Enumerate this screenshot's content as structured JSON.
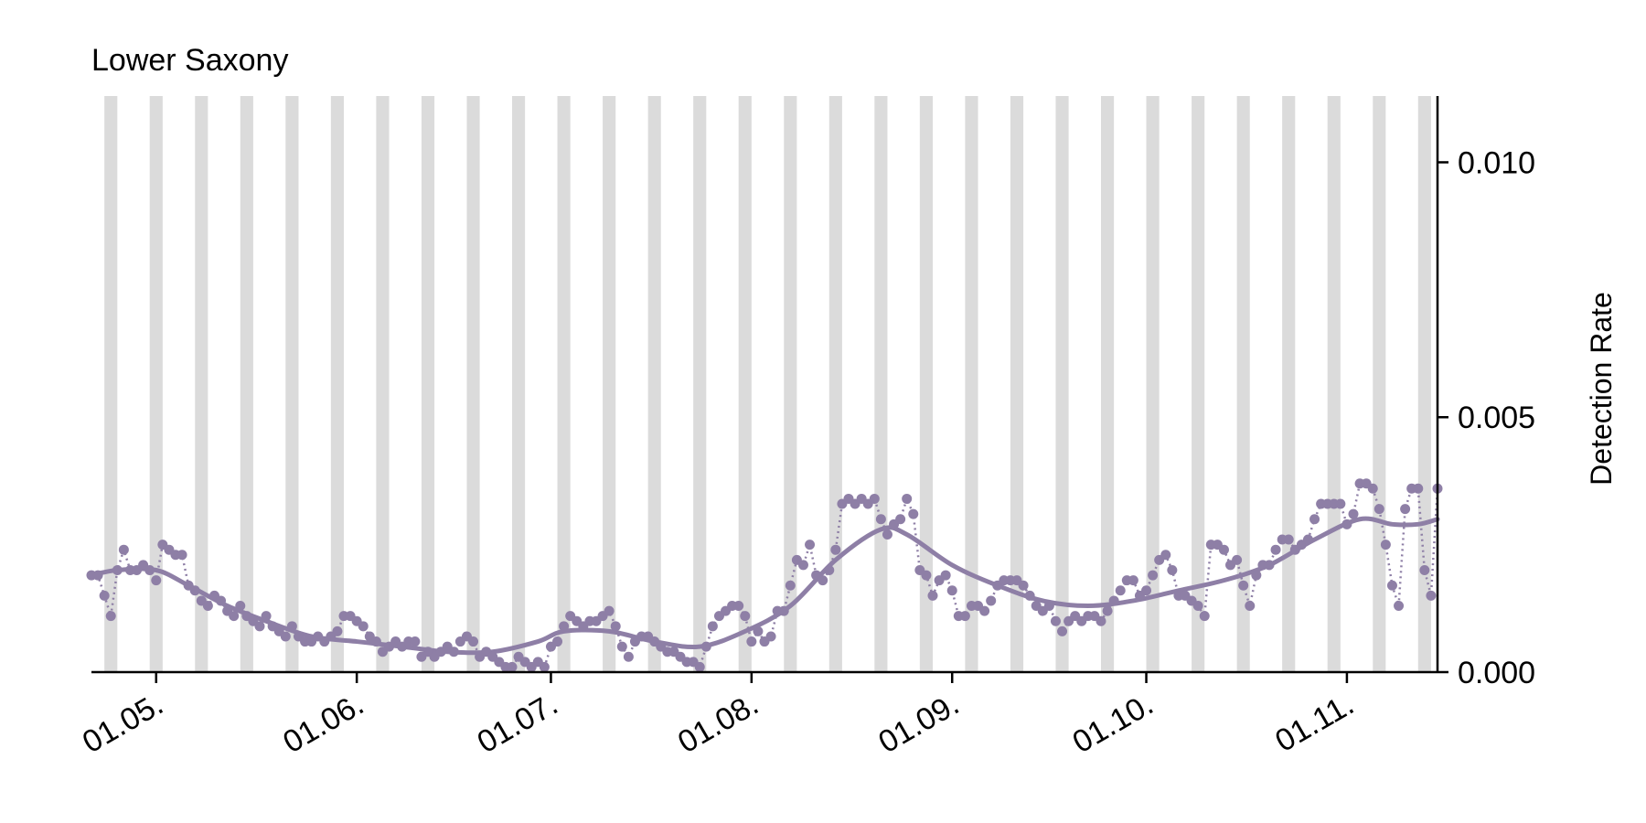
{
  "chart_data": {
    "type": "line",
    "title": "Lower Saxony",
    "ylabel": "Detection Rate",
    "xlabel": "",
    "ylim": [
      0,
      0.0113
    ],
    "xlim": [
      "2022-04-21",
      "2022-11-15"
    ],
    "y_ticks": [
      {
        "value": 0.0,
        "label": "0.000"
      },
      {
        "value": 0.005,
        "label": "0.005"
      },
      {
        "value": 0.01,
        "label": "0.010"
      }
    ],
    "x_ticks": [
      {
        "date": "2022-05-01",
        "label": "01.05."
      },
      {
        "date": "2022-06-01",
        "label": "01.06."
      },
      {
        "date": "2022-07-01",
        "label": "01.07."
      },
      {
        "date": "2022-08-01",
        "label": "01.08."
      },
      {
        "date": "2022-09-01",
        "label": "01.09."
      },
      {
        "date": "2022-10-01",
        "label": "01.10."
      },
      {
        "date": "2022-11-01",
        "label": "01.11."
      }
    ],
    "y_axis_position": "right",
    "grid": false,
    "weekend_bands": [
      "2022-04-23",
      "2022-04-30",
      "2022-05-07",
      "2022-05-14",
      "2022-05-21",
      "2022-05-28",
      "2022-06-04",
      "2022-06-11",
      "2022-06-18",
      "2022-06-25",
      "2022-07-02",
      "2022-07-09",
      "2022-07-16",
      "2022-07-23",
      "2022-07-30",
      "2022-08-06",
      "2022-08-13",
      "2022-08-20",
      "2022-08-27",
      "2022-09-03",
      "2022-09-10",
      "2022-09-17",
      "2022-09-24",
      "2022-10-01",
      "2022-10-08",
      "2022-10-15",
      "2022-10-22",
      "2022-10-29",
      "2022-11-05",
      "2022-11-12"
    ],
    "series": [
      {
        "color": "#8e7fa6",
        "style": "points-dotted",
        "points": [
          [
            "2022-04-21",
            0.0019
          ],
          [
            "2022-04-22",
            0.0019
          ],
          [
            "2022-04-23",
            0.0015
          ],
          [
            "2022-04-24",
            0.0011
          ],
          [
            "2022-04-25",
            0.002
          ],
          [
            "2022-04-26",
            0.0024
          ],
          [
            "2022-04-27",
            0.002
          ],
          [
            "2022-04-28",
            0.002
          ],
          [
            "2022-04-29",
            0.0021
          ],
          [
            "2022-04-30",
            0.002
          ],
          [
            "2022-05-01",
            0.0018
          ],
          [
            "2022-05-02",
            0.0025
          ],
          [
            "2022-05-03",
            0.0024
          ],
          [
            "2022-05-04",
            0.0023
          ],
          [
            "2022-05-05",
            0.0023
          ],
          [
            "2022-05-06",
            0.0017
          ],
          [
            "2022-05-07",
            0.0016
          ],
          [
            "2022-05-08",
            0.0014
          ],
          [
            "2022-05-09",
            0.0013
          ],
          [
            "2022-05-10",
            0.0015
          ],
          [
            "2022-05-11",
            0.0014
          ],
          [
            "2022-05-12",
            0.0012
          ],
          [
            "2022-05-13",
            0.0011
          ],
          [
            "2022-05-14",
            0.0013
          ],
          [
            "2022-05-15",
            0.0011
          ],
          [
            "2022-05-16",
            0.001
          ],
          [
            "2022-05-17",
            0.0009
          ],
          [
            "2022-05-18",
            0.0011
          ],
          [
            "2022-05-19",
            0.0009
          ],
          [
            "2022-05-20",
            0.0008
          ],
          [
            "2022-05-21",
            0.0007
          ],
          [
            "2022-05-22",
            0.0009
          ],
          [
            "2022-05-23",
            0.0007
          ],
          [
            "2022-05-24",
            0.0006
          ],
          [
            "2022-05-25",
            0.0006
          ],
          [
            "2022-05-26",
            0.0007
          ],
          [
            "2022-05-27",
            0.0006
          ],
          [
            "2022-05-28",
            0.0007
          ],
          [
            "2022-05-29",
            0.0008
          ],
          [
            "2022-05-30",
            0.0011
          ],
          [
            "2022-05-31",
            0.0011
          ],
          [
            "2022-06-01",
            0.001
          ],
          [
            "2022-06-02",
            0.0009
          ],
          [
            "2022-06-03",
            0.0007
          ],
          [
            "2022-06-04",
            0.0006
          ],
          [
            "2022-06-05",
            0.0004
          ],
          [
            "2022-06-06",
            0.0005
          ],
          [
            "2022-06-07",
            0.0006
          ],
          [
            "2022-06-08",
            0.0005
          ],
          [
            "2022-06-09",
            0.0006
          ],
          [
            "2022-06-10",
            0.0006
          ],
          [
            "2022-06-11",
            0.0003
          ],
          [
            "2022-06-12",
            0.0004
          ],
          [
            "2022-06-13",
            0.0003
          ],
          [
            "2022-06-14",
            0.0004
          ],
          [
            "2022-06-15",
            0.0005
          ],
          [
            "2022-06-16",
            0.0004
          ],
          [
            "2022-06-17",
            0.0006
          ],
          [
            "2022-06-18",
            0.0007
          ],
          [
            "2022-06-19",
            0.0006
          ],
          [
            "2022-06-20",
            0.0003
          ],
          [
            "2022-06-21",
            0.0004
          ],
          [
            "2022-06-22",
            0.0003
          ],
          [
            "2022-06-23",
            0.0002
          ],
          [
            "2022-06-24",
            0.0001
          ],
          [
            "2022-06-25",
            0.0001
          ],
          [
            "2022-06-26",
            0.0003
          ],
          [
            "2022-06-27",
            0.0002
          ],
          [
            "2022-06-28",
            0.0001
          ],
          [
            "2022-06-29",
            0.0002
          ],
          [
            "2022-06-30",
            0.0001
          ],
          [
            "2022-07-01",
            0.0005
          ],
          [
            "2022-07-02",
            0.0006
          ],
          [
            "2022-07-03",
            0.0009
          ],
          [
            "2022-07-04",
            0.0011
          ],
          [
            "2022-07-05",
            0.001
          ],
          [
            "2022-07-06",
            0.0009
          ],
          [
            "2022-07-07",
            0.001
          ],
          [
            "2022-07-08",
            0.001
          ],
          [
            "2022-07-09",
            0.0011
          ],
          [
            "2022-07-10",
            0.0012
          ],
          [
            "2022-07-11",
            0.0009
          ],
          [
            "2022-07-12",
            0.0005
          ],
          [
            "2022-07-13",
            0.0003
          ],
          [
            "2022-07-14",
            0.0006
          ],
          [
            "2022-07-15",
            0.0007
          ],
          [
            "2022-07-16",
            0.0007
          ],
          [
            "2022-07-17",
            0.0006
          ],
          [
            "2022-07-18",
            0.0005
          ],
          [
            "2022-07-19",
            0.0004
          ],
          [
            "2022-07-20",
            0.0004
          ],
          [
            "2022-07-21",
            0.0003
          ],
          [
            "2022-07-22",
            0.0002
          ],
          [
            "2022-07-23",
            0.0002
          ],
          [
            "2022-07-24",
            0.0001
          ],
          [
            "2022-07-25",
            0.0005
          ],
          [
            "2022-07-26",
            0.0009
          ],
          [
            "2022-07-27",
            0.0011
          ],
          [
            "2022-07-28",
            0.0012
          ],
          [
            "2022-07-29",
            0.0013
          ],
          [
            "2022-07-30",
            0.0013
          ],
          [
            "2022-07-31",
            0.0011
          ],
          [
            "2022-08-01",
            0.0006
          ],
          [
            "2022-08-02",
            0.0008
          ],
          [
            "2022-08-03",
            0.0006
          ],
          [
            "2022-08-04",
            0.0007
          ],
          [
            "2022-08-05",
            0.0012
          ],
          [
            "2022-08-06",
            0.0012
          ],
          [
            "2022-08-07",
            0.0017
          ],
          [
            "2022-08-08",
            0.0022
          ],
          [
            "2022-08-09",
            0.0021
          ],
          [
            "2022-08-10",
            0.0025
          ],
          [
            "2022-08-11",
            0.0019
          ],
          [
            "2022-08-12",
            0.0018
          ],
          [
            "2022-08-13",
            0.002
          ],
          [
            "2022-08-14",
            0.0024
          ],
          [
            "2022-08-15",
            0.0033
          ],
          [
            "2022-08-16",
            0.0034
          ],
          [
            "2022-08-17",
            0.0033
          ],
          [
            "2022-08-18",
            0.0034
          ],
          [
            "2022-08-19",
            0.0033
          ],
          [
            "2022-08-20",
            0.0034
          ],
          [
            "2022-08-21",
            0.003
          ],
          [
            "2022-08-22",
            0.0027
          ],
          [
            "2022-08-23",
            0.0029
          ],
          [
            "2022-08-24",
            0.003
          ],
          [
            "2022-08-25",
            0.0034
          ],
          [
            "2022-08-26",
            0.0031
          ],
          [
            "2022-08-27",
            0.002
          ],
          [
            "2022-08-28",
            0.0019
          ],
          [
            "2022-08-29",
            0.0015
          ],
          [
            "2022-08-30",
            0.0018
          ],
          [
            "2022-08-31",
            0.0019
          ],
          [
            "2022-09-01",
            0.0016
          ],
          [
            "2022-09-02",
            0.0011
          ],
          [
            "2022-09-03",
            0.0011
          ],
          [
            "2022-09-04",
            0.0013
          ],
          [
            "2022-09-05",
            0.0013
          ],
          [
            "2022-09-06",
            0.0012
          ],
          [
            "2022-09-07",
            0.0014
          ],
          [
            "2022-09-08",
            0.0017
          ],
          [
            "2022-09-09",
            0.0018
          ],
          [
            "2022-09-10",
            0.0018
          ],
          [
            "2022-09-11",
            0.0018
          ],
          [
            "2022-09-12",
            0.0017
          ],
          [
            "2022-09-13",
            0.0015
          ],
          [
            "2022-09-14",
            0.0013
          ],
          [
            "2022-09-15",
            0.0012
          ],
          [
            "2022-09-16",
            0.0013
          ],
          [
            "2022-09-17",
            0.001
          ],
          [
            "2022-09-18",
            0.0008
          ],
          [
            "2022-09-19",
            0.001
          ],
          [
            "2022-09-20",
            0.0011
          ],
          [
            "2022-09-21",
            0.001
          ],
          [
            "2022-09-22",
            0.0011
          ],
          [
            "2022-09-23",
            0.0011
          ],
          [
            "2022-09-24",
            0.001
          ],
          [
            "2022-09-25",
            0.0012
          ],
          [
            "2022-09-26",
            0.0014
          ],
          [
            "2022-09-27",
            0.0016
          ],
          [
            "2022-09-28",
            0.0018
          ],
          [
            "2022-09-29",
            0.0018
          ],
          [
            "2022-09-30",
            0.0015
          ],
          [
            "2022-10-01",
            0.0016
          ],
          [
            "2022-10-02",
            0.0019
          ],
          [
            "2022-10-03",
            0.0022
          ],
          [
            "2022-10-04",
            0.0023
          ],
          [
            "2022-10-05",
            0.002
          ],
          [
            "2022-10-06",
            0.0015
          ],
          [
            "2022-10-07",
            0.0015
          ],
          [
            "2022-10-08",
            0.0014
          ],
          [
            "2022-10-09",
            0.0013
          ],
          [
            "2022-10-10",
            0.0011
          ],
          [
            "2022-10-11",
            0.0025
          ],
          [
            "2022-10-12",
            0.0025
          ],
          [
            "2022-10-13",
            0.0024
          ],
          [
            "2022-10-14",
            0.0021
          ],
          [
            "2022-10-15",
            0.0022
          ],
          [
            "2022-10-16",
            0.0017
          ],
          [
            "2022-10-17",
            0.0013
          ],
          [
            "2022-10-18",
            0.0019
          ],
          [
            "2022-10-19",
            0.0021
          ],
          [
            "2022-10-20",
            0.0021
          ],
          [
            "2022-10-21",
            0.0024
          ],
          [
            "2022-10-22",
            0.0026
          ],
          [
            "2022-10-23",
            0.0026
          ],
          [
            "2022-10-24",
            0.0024
          ],
          [
            "2022-10-25",
            0.0025
          ],
          [
            "2022-10-26",
            0.0026
          ],
          [
            "2022-10-27",
            0.003
          ],
          [
            "2022-10-28",
            0.0033
          ],
          [
            "2022-10-29",
            0.0033
          ],
          [
            "2022-10-30",
            0.0033
          ],
          [
            "2022-10-31",
            0.0033
          ],
          [
            "2022-11-01",
            0.0029
          ],
          [
            "2022-11-02",
            0.0031
          ],
          [
            "2022-11-03",
            0.0037
          ],
          [
            "2022-11-04",
            0.0037
          ],
          [
            "2022-11-05",
            0.0036
          ],
          [
            "2022-11-06",
            0.0032
          ],
          [
            "2022-11-07",
            0.0025
          ],
          [
            "2022-11-08",
            0.0017
          ],
          [
            "2022-11-09",
            0.0013
          ],
          [
            "2022-11-10",
            0.0032
          ],
          [
            "2022-11-11",
            0.0036
          ],
          [
            "2022-11-12",
            0.0036
          ],
          [
            "2022-11-13",
            0.002
          ],
          [
            "2022-11-14",
            0.0015
          ],
          [
            "2022-11-15",
            0.0036
          ]
        ]
      },
      {
        "color": "#8e7fa6",
        "style": "smooth",
        "points": [
          [
            "2022-04-21",
            0.0019
          ],
          [
            "2022-04-25",
            0.002
          ],
          [
            "2022-05-01",
            0.002
          ],
          [
            "2022-05-06",
            0.0017
          ],
          [
            "2022-05-12",
            0.0013
          ],
          [
            "2022-05-18",
            0.001
          ],
          [
            "2022-05-25",
            0.0007
          ],
          [
            "2022-06-01",
            0.0006
          ],
          [
            "2022-06-08",
            0.0005
          ],
          [
            "2022-06-15",
            0.0004
          ],
          [
            "2022-06-22",
            0.0004
          ],
          [
            "2022-06-29",
            0.0006
          ],
          [
            "2022-07-03",
            0.0008
          ],
          [
            "2022-07-10",
            0.0008
          ],
          [
            "2022-07-17",
            0.0006
          ],
          [
            "2022-07-24",
            0.0005
          ],
          [
            "2022-07-31",
            0.0008
          ],
          [
            "2022-08-07",
            0.0013
          ],
          [
            "2022-08-14",
            0.0022
          ],
          [
            "2022-08-21",
            0.0028
          ],
          [
            "2022-08-25",
            0.0027
          ],
          [
            "2022-09-01",
            0.0021
          ],
          [
            "2022-09-08",
            0.0017
          ],
          [
            "2022-09-15",
            0.0014
          ],
          [
            "2022-09-22",
            0.0013
          ],
          [
            "2022-09-29",
            0.0014
          ],
          [
            "2022-10-06",
            0.0016
          ],
          [
            "2022-10-13",
            0.0018
          ],
          [
            "2022-10-20",
            0.0021
          ],
          [
            "2022-10-27",
            0.0026
          ],
          [
            "2022-11-03",
            0.003
          ],
          [
            "2022-11-08",
            0.0029
          ],
          [
            "2022-11-12",
            0.0029
          ],
          [
            "2022-11-15",
            0.003
          ]
        ]
      }
    ]
  }
}
